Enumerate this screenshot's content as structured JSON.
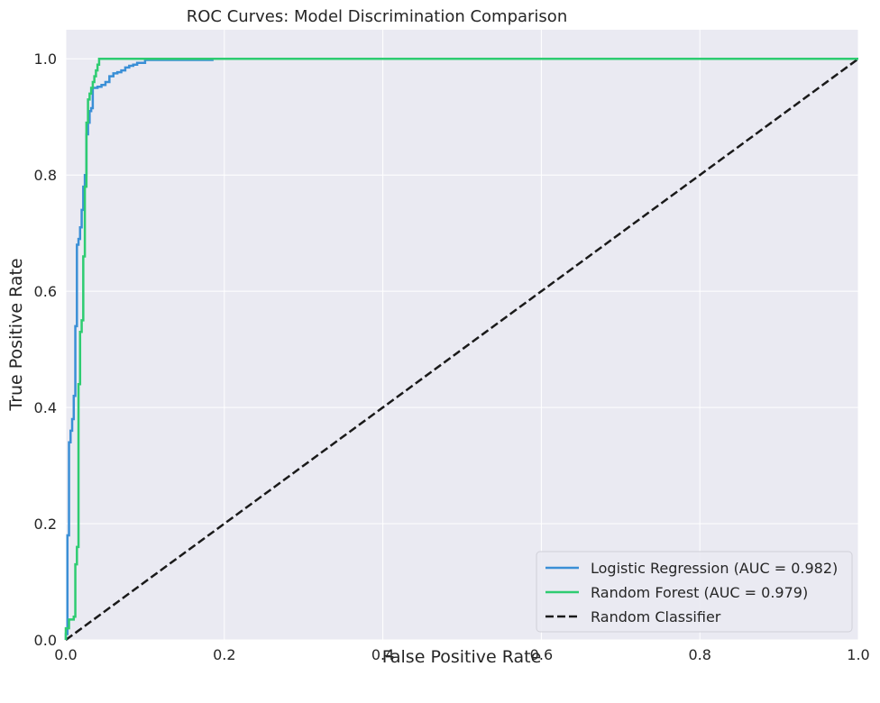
{
  "chart_data": {
    "type": "line",
    "title": "ROC Curves: Model Discrimination Comparison",
    "xlabel": "False Positive Rate",
    "ylabel": "True Positive Rate",
    "xlim": [
      0.0,
      1.0
    ],
    "ylim": [
      0.0,
      1.05
    ],
    "xticks": [
      "0.0",
      "0.2",
      "0.4",
      "0.6",
      "0.8",
      "1.0"
    ],
    "yticks": [
      "0.0",
      "0.2",
      "0.4",
      "0.6",
      "0.8",
      "1.0"
    ],
    "grid": true,
    "legend_position": "bottom-right",
    "background_color": "#eaeaf2",
    "series": [
      {
        "name": "Logistic Regression (AUC = 0.982)",
        "color": "#3a8fd6",
        "style": "solid",
        "x": [
          0.0,
          0.0,
          0.002,
          0.002,
          0.004,
          0.004,
          0.006,
          0.006,
          0.008,
          0.008,
          0.01,
          0.01,
          0.012,
          0.012,
          0.014,
          0.014,
          0.016,
          0.016,
          0.018,
          0.018,
          0.02,
          0.02,
          0.022,
          0.022,
          0.024,
          0.024,
          0.026,
          0.026,
          0.028,
          0.028,
          0.03,
          0.03,
          0.032,
          0.032,
          0.034,
          0.034,
          0.036,
          0.036,
          0.04,
          0.04,
          0.045,
          0.045,
          0.05,
          0.05,
          0.055,
          0.055,
          0.06,
          0.06,
          0.065,
          0.065,
          0.07,
          0.07,
          0.075,
          0.075,
          0.08,
          0.08,
          0.085,
          0.085,
          0.09,
          0.09,
          0.1,
          0.1,
          0.185,
          0.185,
          1.0
        ],
        "y": [
          0.0,
          0.01,
          0.01,
          0.18,
          0.18,
          0.34,
          0.34,
          0.36,
          0.36,
          0.38,
          0.38,
          0.42,
          0.42,
          0.54,
          0.54,
          0.68,
          0.68,
          0.69,
          0.69,
          0.71,
          0.71,
          0.74,
          0.74,
          0.78,
          0.78,
          0.8,
          0.8,
          0.87,
          0.87,
          0.89,
          0.89,
          0.91,
          0.91,
          0.915,
          0.915,
          0.95,
          0.95,
          0.95,
          0.95,
          0.952,
          0.952,
          0.955,
          0.955,
          0.96,
          0.96,
          0.97,
          0.97,
          0.975,
          0.975,
          0.977,
          0.977,
          0.98,
          0.98,
          0.985,
          0.985,
          0.988,
          0.988,
          0.99,
          0.99,
          0.993,
          0.993,
          0.998,
          0.998,
          1.0,
          1.0
        ]
      },
      {
        "name": "Random Forest (AUC = 0.979)",
        "color": "#2ecc71",
        "style": "solid",
        "x": [
          0.0,
          0.0,
          0.004,
          0.004,
          0.01,
          0.01,
          0.012,
          0.012,
          0.014,
          0.014,
          0.016,
          0.016,
          0.018,
          0.018,
          0.02,
          0.02,
          0.022,
          0.022,
          0.024,
          0.024,
          0.026,
          0.026,
          0.028,
          0.028,
          0.03,
          0.03,
          0.032,
          0.032,
          0.034,
          0.034,
          0.036,
          0.036,
          0.038,
          0.038,
          0.04,
          0.04,
          0.042,
          0.042,
          0.044,
          0.044,
          1.0
        ],
        "y": [
          0.0,
          0.02,
          0.02,
          0.035,
          0.035,
          0.04,
          0.04,
          0.13,
          0.13,
          0.16,
          0.16,
          0.44,
          0.44,
          0.53,
          0.53,
          0.55,
          0.55,
          0.66,
          0.66,
          0.78,
          0.78,
          0.89,
          0.89,
          0.93,
          0.93,
          0.94,
          0.94,
          0.95,
          0.95,
          0.96,
          0.96,
          0.97,
          0.97,
          0.98,
          0.98,
          0.99,
          0.99,
          1.0,
          1.0,
          1.0,
          1.0
        ]
      },
      {
        "name": "Random Classifier",
        "color": "#1a1a1a",
        "style": "dashed",
        "x": [
          0.0,
          1.0
        ],
        "y": [
          0.0,
          1.0
        ]
      }
    ]
  }
}
